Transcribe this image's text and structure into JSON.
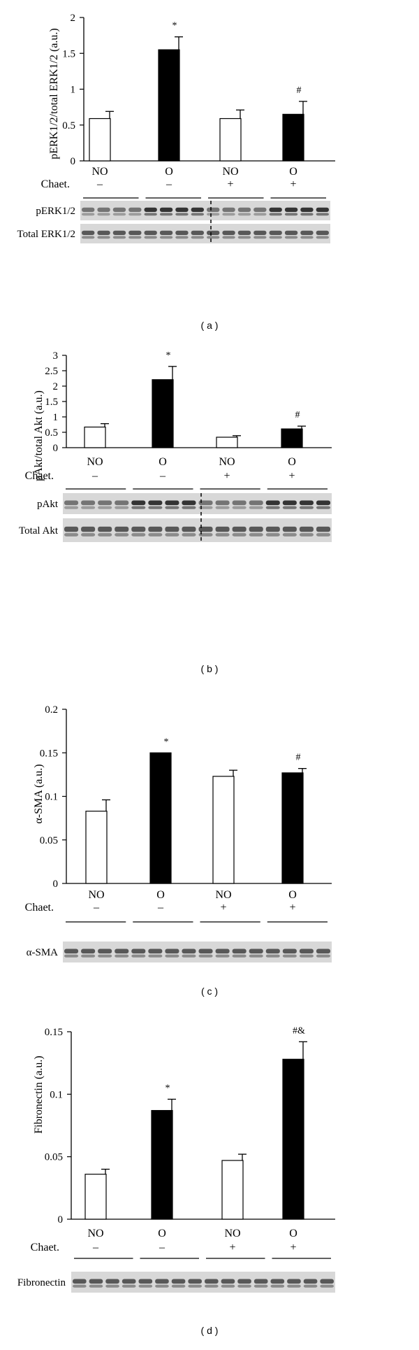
{
  "colors": {
    "control": "#ffffff",
    "obese": "#000000",
    "axis": "#000000",
    "blot_bg": "#d8d8d8",
    "band": "#222222"
  },
  "group_labels": {
    "row1": [
      "NO",
      "O",
      "NO",
      "O"
    ],
    "row2": [
      "–",
      "–",
      "+",
      "+"
    ],
    "row_title": "Chaet."
  },
  "charts": [
    {
      "panel_label": "( a )",
      "chart_data": {
        "type": "bar",
        "categories": [
          "NO –",
          "O –",
          "NO +",
          "O +"
        ],
        "values": [
          0.59,
          1.55,
          0.59,
          0.65
        ],
        "errors": [
          0.1,
          0.18,
          0.12,
          0.18
        ],
        "annotations": [
          "",
          "*",
          "",
          "#"
        ],
        "ylabel": "pERK1/2/total ERK1/2 (a.u.)",
        "ylim": [
          0,
          2
        ],
        "yticks": [
          0,
          0.5,
          1,
          1.5,
          2
        ],
        "ytick_labels": [
          "0",
          "0.5",
          "1",
          "1.5",
          "2"
        ],
        "grid": false
      },
      "blots": [
        {
          "label": "pERK1/2"
        },
        {
          "label": "Total ERK1/2"
        }
      ],
      "blot_split": true
    },
    {
      "panel_label": "( b )",
      "chart_data": {
        "type": "bar",
        "categories": [
          "NO –",
          "O –",
          "NO +",
          "O +"
        ],
        "values": [
          0.67,
          2.21,
          0.34,
          0.61
        ],
        "errors": [
          0.11,
          0.43,
          0.05,
          0.09
        ],
        "annotations": [
          "",
          "*",
          "",
          "#"
        ],
        "ylabel": "pAkt/total Akt (a.u.)",
        "ylim": [
          0,
          3
        ],
        "yticks": [
          0,
          0.5,
          1,
          1.5,
          2,
          2.5,
          3
        ],
        "ytick_labels": [
          "0",
          "0.5",
          "1",
          "1.5",
          "2",
          "2.5",
          "3"
        ],
        "grid": false
      },
      "blots": [
        {
          "label": "pAkt"
        },
        {
          "label": "Total Akt"
        }
      ],
      "blot_split": true
    },
    {
      "panel_label": "( c )",
      "chart_data": {
        "type": "bar",
        "categories": [
          "NO –",
          "O –",
          "NO +",
          "O +"
        ],
        "values": [
          0.083,
          0.15,
          0.123,
          0.127
        ],
        "errors": [
          0.013,
          0.0,
          0.007,
          0.005
        ],
        "annotations": [
          "",
          "*",
          "",
          "#"
        ],
        "ylabel": "α-SMA (a.u.)",
        "ylim": [
          0,
          0.2
        ],
        "yticks": [
          0,
          0.05,
          0.1,
          0.15,
          0.2
        ],
        "ytick_labels": [
          "0",
          "0.05",
          "0.1",
          "0.15",
          "0.2"
        ],
        "grid": false
      },
      "blots": [
        {
          "label": "α-SMA"
        }
      ],
      "blot_split": false
    },
    {
      "panel_label": "( d )",
      "chart_data": {
        "type": "bar",
        "categories": [
          "NO –",
          "O –",
          "NO +",
          "O +"
        ],
        "values": [
          0.036,
          0.087,
          0.047,
          0.128
        ],
        "errors": [
          0.004,
          0.009,
          0.005,
          0.014
        ],
        "annotations": [
          "",
          "*",
          "",
          "#&"
        ],
        "ylabel": "Fibronectin (a.u.)",
        "ylim": [
          0,
          0.15
        ],
        "yticks": [
          0,
          0.05,
          0.1,
          0.15
        ],
        "ytick_labels": [
          "0",
          "0.05",
          "0.1",
          "0.15"
        ],
        "grid": false
      },
      "blots": [
        {
          "label": "Fibronectin"
        }
      ],
      "blot_split": false
    }
  ]
}
